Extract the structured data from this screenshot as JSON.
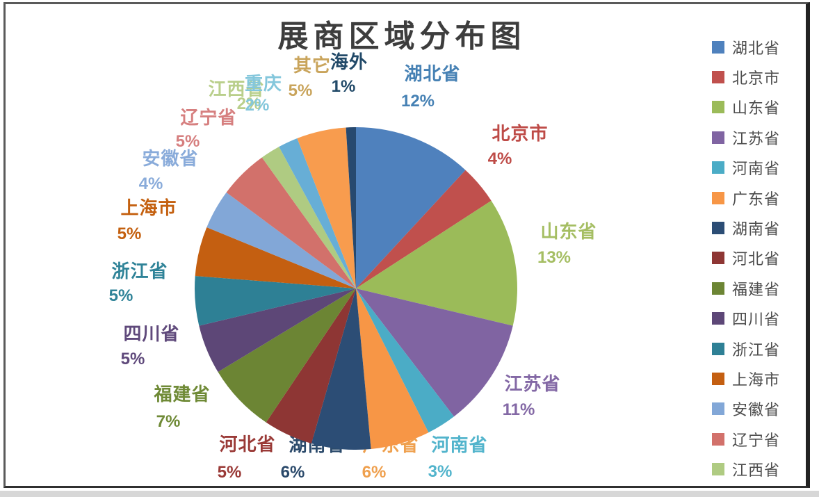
{
  "page": {
    "title": "展商区域分布图"
  },
  "chart_data": {
    "type": "pie",
    "title": "展商区域分布图",
    "unit": "%",
    "categories": [
      "湖北省",
      "北京市",
      "山东省",
      "江苏省",
      "河南省",
      "广东省",
      "湖南省",
      "河北省",
      "福建省",
      "四川省",
      "浙江省",
      "上海市",
      "安徽省",
      "辽宁省",
      "江西省",
      "重庆",
      "其它",
      "海外"
    ],
    "values": [
      12,
      4,
      13,
      11,
      3,
      6,
      6,
      5,
      7,
      5,
      5,
      5,
      4,
      5,
      2,
      2,
      5,
      1
    ],
    "data_labels": [
      "湖北省 12%",
      "北京市 4%",
      "山东省 13%",
      "江苏省 11%",
      "河南省 3%",
      "广东省 6%",
      "湖南省 6%",
      "河北省 5%",
      "福建省 7%",
      "四川省 5%",
      "浙江省 5%",
      "上海市 5%",
      "安徽省 4%",
      "辽宁省 5%",
      "江西省 2%",
      "重庆 2%",
      "其它 5%",
      "海外 1%"
    ],
    "slice_colors": [
      "#4F81BD",
      "#C0504D",
      "#9BBB59",
      "#8064A2",
      "#4BACC6",
      "#F79646",
      "#2C4D75",
      "#8E3634",
      "#6C8534",
      "#5D4777",
      "#2E8095",
      "#C45F11",
      "#82A7D7",
      "#D2716B",
      "#AFCB82",
      "#67AED6",
      "#F89C4E",
      "#27496F"
    ],
    "label_text_colors": [
      "#4681B4",
      "#BE4B47",
      "#A5BE63",
      "#8368A5",
      "#52B4CC",
      "#EFA04E",
      "#2B4A6B",
      "#9A3A37",
      "#6F8A36",
      "#5F497B",
      "#2F8398",
      "#C4600F",
      "#89ABDA",
      "#D67F7F",
      "#B9CF8B",
      "#84C7DC",
      "#C9A45B",
      "#214968"
    ],
    "legend": {
      "position": "right",
      "items": [
        "湖北省",
        "北京市",
        "山东省",
        "江苏省",
        "河南省",
        "广东省",
        "湖南省",
        "河北省",
        "福建省",
        "四川省",
        "浙江省",
        "上海市",
        "安徽省",
        "辽宁省",
        "江西省"
      ]
    },
    "start_angle": "12 o'clock, clockwise",
    "grid": false
  }
}
